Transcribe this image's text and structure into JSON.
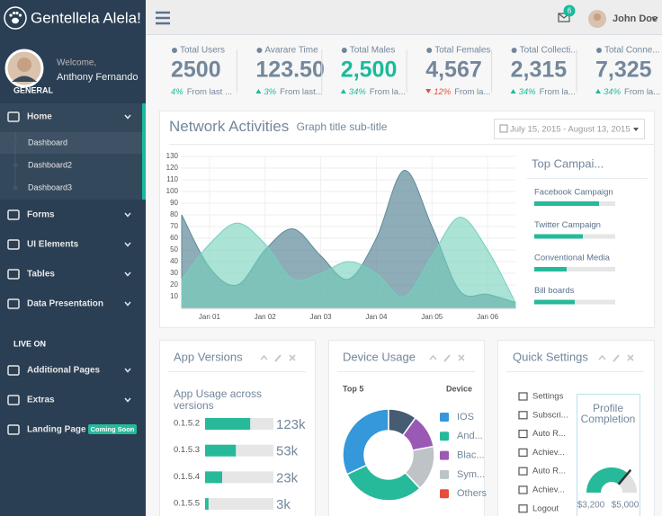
{
  "brand": "Gentellela Alela!",
  "profile": {
    "welcome": "Welcome,",
    "name": "Anthony Fernando"
  },
  "sidebar": {
    "sections": [
      {
        "title": "GENERAL",
        "items": [
          {
            "label": "Home",
            "children": [
              "Dashboard",
              "Dashboard2",
              "Dashboard3"
            ]
          },
          {
            "label": "Forms"
          },
          {
            "label": "UI Elements"
          },
          {
            "label": "Tables"
          },
          {
            "label": "Data Presentation"
          }
        ]
      },
      {
        "title": "LIVE ON",
        "items": [
          {
            "label": "Additional Pages"
          },
          {
            "label": "Extras"
          },
          {
            "label": "Landing Page",
            "badge": "Coming Soon"
          }
        ]
      }
    ]
  },
  "topnav": {
    "notifications": "6",
    "user": "John Doe"
  },
  "tiles": [
    {
      "label": "Total Users",
      "value": "2500",
      "color": "#73879C",
      "change": "4%",
      "trend": "none",
      "note": "From last ..."
    },
    {
      "label": "Avarare Time",
      "value": "123.50",
      "color": "#73879C",
      "change": "3%",
      "trend": "up",
      "note": "From last..."
    },
    {
      "label": "Total Males",
      "value": "2,500",
      "color": "#1ABB9C",
      "change": "34%",
      "trend": "up",
      "note": "From la..."
    },
    {
      "label": "Total Females",
      "value": "4,567",
      "color": "#73879C",
      "change": "12%",
      "trend": "down",
      "note": "From la..."
    },
    {
      "label": "Total Collecti...",
      "value": "2,315",
      "color": "#73879C",
      "change": "34%",
      "trend": "up",
      "note": "From la..."
    },
    {
      "label": "Total Conne...",
      "value": "7,325",
      "color": "#73879C",
      "change": "34%",
      "trend": "up",
      "note": "From la..."
    }
  ],
  "network": {
    "title": "Network Activities",
    "subtitle": "Graph title sub-title",
    "date_range": "July 15, 2015 - August 13, 2015"
  },
  "campaigns": {
    "title": "Top Campai...",
    "items": [
      {
        "label": "Facebook Campaign",
        "value": 80
      },
      {
        "label": "Twitter Campaign",
        "value": 60
      },
      {
        "label": "Conventional Media",
        "value": 40
      },
      {
        "label": "Bill boards",
        "value": 50
      }
    ]
  },
  "app_versions": {
    "title": "App Versions",
    "subtitle_lines": [
      "App Usage across",
      "versions"
    ],
    "rows": [
      {
        "label": "0.1.5.2",
        "value": "123k",
        "fill": 66
      },
      {
        "label": "0.1.5.3",
        "value": "53k",
        "fill": 45
      },
      {
        "label": "0.1.5.4",
        "value": "23k",
        "fill": 25
      },
      {
        "label": "0.1.5.5",
        "value": "3k",
        "fill": 5
      }
    ]
  },
  "device_usage": {
    "title": "Device Usage",
    "col1": "Top 5",
    "col2": "Device"
  },
  "quick_settings": {
    "title": "Quick Settings",
    "items": [
      "Settings",
      "Subscri...",
      "Auto R...",
      "Achiev...",
      "Auto R...",
      "Achiev...",
      "Logout"
    ],
    "gauge": {
      "title_lines": [
        "Profile",
        "Completion"
      ],
      "min": {
        "value": 3200,
        "label": "$3,200"
      },
      "max": {
        "value": 5000,
        "label": "$5,000"
      },
      "value": 4500,
      "color": "#26B99A"
    }
  },
  "chart_data": [
    {
      "type": "area",
      "categories": [
        null,
        "Jan 01",
        null,
        "Jan 02",
        null,
        "Jan 03",
        null,
        "Jan 04",
        null,
        "Jan 05",
        null,
        "Jan 06",
        null
      ],
      "series": [
        {
          "color": "#5E8A9A",
          "values": [
            80,
            35,
            20,
            50,
            68,
            45,
            25,
            60,
            118,
            70,
            15,
            12,
            5
          ]
        },
        {
          "color": "#73D1BA",
          "values": [
            25,
            55,
            73,
            55,
            25,
            30,
            40,
            30,
            10,
            45,
            78,
            50,
            5
          ]
        }
      ],
      "ylim": [
        0,
        130
      ],
      "yticks": [
        10,
        20,
        30,
        40,
        50,
        60,
        70,
        80,
        90,
        100,
        110,
        120,
        130
      ],
      "grid": true
    },
    {
      "type": "donut",
      "categories": [
        "IOS",
        "And...",
        "Blac...",
        "Sym...",
        "Others"
      ],
      "values": [
        32,
        30,
        16,
        12,
        10
      ],
      "colors": [
        "#3498DB",
        "#26B99A",
        "#BDC3C7",
        "#9B59B6",
        "#455C73"
      ],
      "legend_colors": [
        "#3498DB",
        "#26B99A",
        "#9B59B6",
        "#BDC3C7",
        "#E74C3C"
      ]
    }
  ]
}
